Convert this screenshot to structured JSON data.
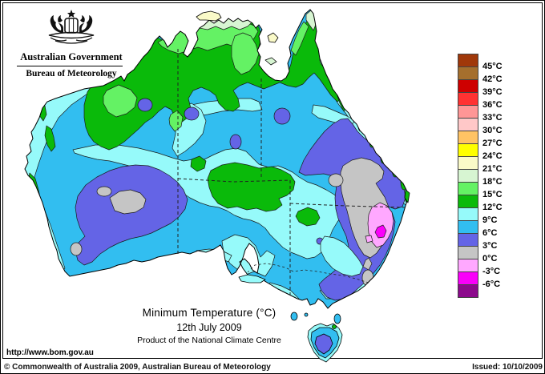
{
  "header": {
    "government": "Australian Government",
    "bureau": "Bureau of Meteorology"
  },
  "titles": {
    "main": "Minimum Temperature (°C)",
    "date": "12th July 2009",
    "product": "Product of the National Climate Centre"
  },
  "url": "http://www.bom.gov.au",
  "footer": {
    "copyright": "© Commonwealth of Australia 2009, Australian Bureau of Meteorology",
    "issued": "Issued: 10/10/2009"
  },
  "legend": {
    "items": [
      {
        "color": "#A0380A",
        "label": "45°C"
      },
      {
        "color": "#A56F2D",
        "label": "42°C"
      },
      {
        "color": "#CE0000",
        "label": "39°C"
      },
      {
        "color": "#FF3232",
        "label": "36°C"
      },
      {
        "color": "#FF9696",
        "label": "33°C"
      },
      {
        "color": "#FFC8C8",
        "label": "30°C"
      },
      {
        "color": "#FFC364",
        "label": "27°C"
      },
      {
        "color": "#FFFF00",
        "label": "24°C"
      },
      {
        "color": "#FAFAC8",
        "label": "21°C"
      },
      {
        "color": "#D7F5D2",
        "label": "18°C"
      },
      {
        "color": "#64F264",
        "label": "15°C"
      },
      {
        "color": "#0ABA0A",
        "label": "12°C"
      },
      {
        "color": "#96FAFA",
        "label": "9°C"
      },
      {
        "color": "#32BEF0",
        "label": "6°C"
      },
      {
        "color": "#6464E6",
        "label": "3°C"
      },
      {
        "color": "#C5C5C5",
        "label": "0°C"
      },
      {
        "color": "#FFA8FF",
        "label": "-3°C"
      },
      {
        "color": "#FA00FA",
        "label": "-6°C"
      },
      {
        "color": "#8C0A8C",
        "label": ""
      }
    ]
  },
  "palette": {
    "c21": "#FAFAC8",
    "c18": "#D7F5D2",
    "c15": "#64F264",
    "c12": "#0ABA0A",
    "c9": "#96FAFA",
    "c6": "#32BEF0",
    "c3": "#6464E6",
    "c0": "#C5C5C5",
    "cm3": "#FFA8FF",
    "cm6": "#FA00FA"
  }
}
